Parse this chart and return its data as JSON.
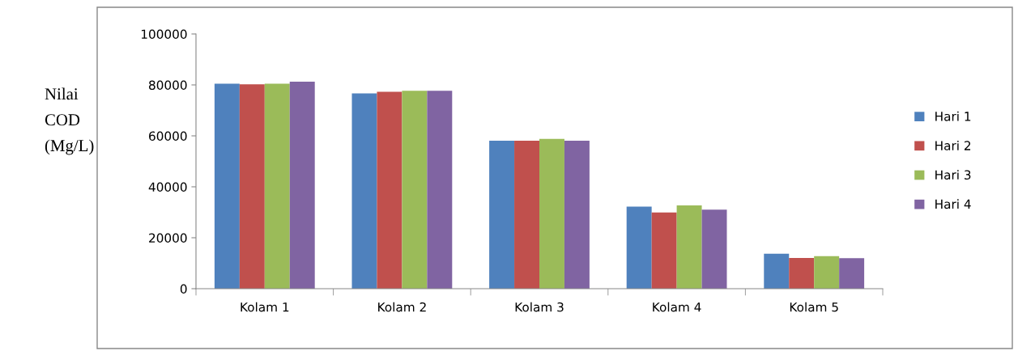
{
  "chart_data": {
    "type": "bar",
    "ylabel": "Nilai\nCOD\n(Mg/L)",
    "categories": [
      "Kolam 1",
      "Kolam 2",
      "Kolam 3",
      "Kolam 4",
      "Kolam 5"
    ],
    "series": [
      {
        "name": "Hari 1",
        "color": "#4f81bd",
        "values": [
          80500,
          76700,
          58100,
          32200,
          13700
        ]
      },
      {
        "name": "Hari 2",
        "color": "#c0504d",
        "values": [
          80200,
          77300,
          58100,
          29900,
          12100
        ]
      },
      {
        "name": "Hari 3",
        "color": "#9bbb59",
        "values": [
          80500,
          77700,
          58800,
          32700,
          12800
        ]
      },
      {
        "name": "Hari 4",
        "color": "#8064a2",
        "values": [
          81300,
          77700,
          58100,
          31000,
          12000
        ]
      }
    ],
    "ylim": [
      0,
      100000
    ],
    "yticks": [
      0,
      20000,
      40000,
      60000,
      80000,
      100000
    ],
    "grid": false,
    "legend": "right"
  }
}
